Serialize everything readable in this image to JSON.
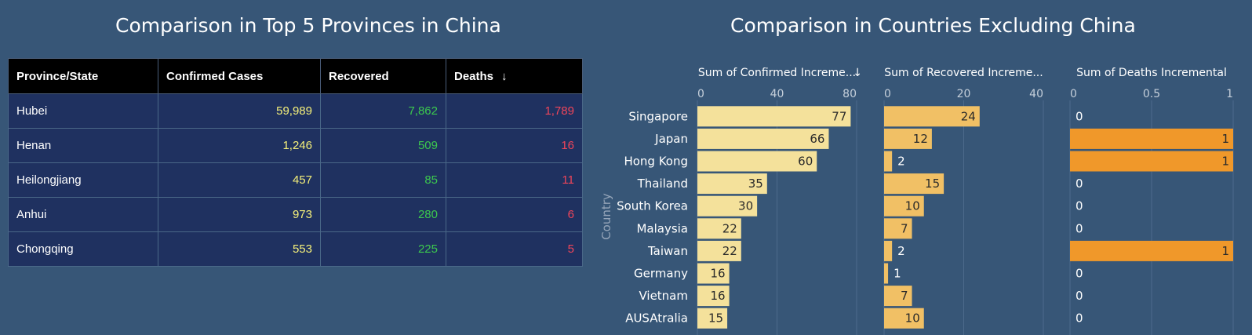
{
  "left_title": "Comparison in Top 5 Provinces in China",
  "right_title": "Comparison in Countries Excluding China",
  "colors": {
    "background": "#375677",
    "confirmed_text": "#f5f07a",
    "recovered_text": "#3cc84e",
    "deaths_text": "#f0455a",
    "confirmed_bar": "#f4e19b",
    "recovered_bar": "#f1c065",
    "deaths_bar": "#f0982a"
  },
  "table": {
    "headers": [
      "Province/State",
      "Confirmed Cases",
      "Recovered",
      "Deaths"
    ],
    "sort_indicator": "↓",
    "rows": [
      {
        "province": "Hubei",
        "confirmed": "59,989",
        "recovered": "7,862",
        "deaths": "1,789"
      },
      {
        "province": "Henan",
        "confirmed": "1,246",
        "recovered": "509",
        "deaths": "16"
      },
      {
        "province": "Heilongjiang",
        "confirmed": "457",
        "recovered": "85",
        "deaths": "11"
      },
      {
        "province": "Anhui",
        "confirmed": "973",
        "recovered": "280",
        "deaths": "6"
      },
      {
        "province": "Chongqing",
        "confirmed": "553",
        "recovered": "225",
        "deaths": "5"
      }
    ]
  },
  "chart_data": {
    "type": "bar",
    "orientation": "horizontal",
    "ylabel": "Country",
    "categories": [
      "Singapore",
      "Japan",
      "Hong Kong",
      "Thailand",
      "South Korea",
      "Malaysia",
      "Taiwan",
      "Germany",
      "Vietnam",
      "AUSAtralia"
    ],
    "panels": [
      {
        "title": "Sum of Confirmed Increme...",
        "sort_indicator": "↓",
        "ticks": [
          0,
          40,
          80
        ],
        "xlim": [
          0,
          80
        ],
        "values": [
          77,
          66,
          60,
          35,
          30,
          22,
          22,
          16,
          16,
          15
        ]
      },
      {
        "title": "Sum of Recovered Increme...",
        "ticks": [
          0,
          20,
          40
        ],
        "xlim": [
          0,
          40
        ],
        "values": [
          24,
          12,
          2,
          15,
          10,
          7,
          2,
          1,
          7,
          10
        ]
      },
      {
        "title": "Sum of Deaths Incremental",
        "ticks": [
          0,
          0.5,
          1
        ],
        "xlim": [
          0,
          1
        ],
        "values": [
          0,
          1,
          1,
          0,
          0,
          0,
          1,
          0,
          0,
          0
        ]
      }
    ],
    "grid": true
  }
}
